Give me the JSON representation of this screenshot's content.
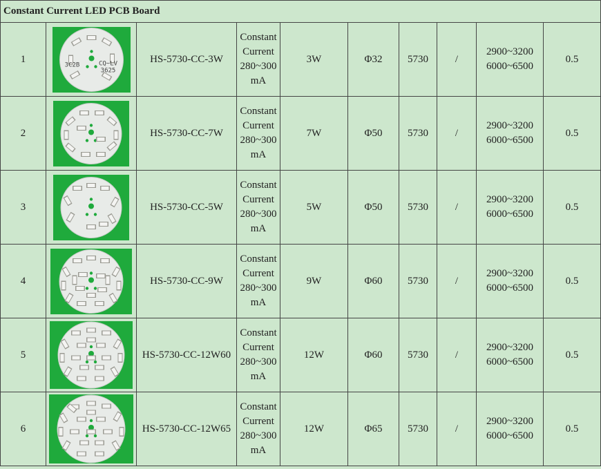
{
  "title": "Constant Current LED PCB Board",
  "colors": {
    "row_bg": "#cde7cd",
    "border": "#444444",
    "thumb_bg": "#1faa3c",
    "board": "#e8ebe8",
    "led": "#f4f4f2"
  },
  "rows": [
    {
      "no": "1",
      "image_icon": "round-led-pcb-3-led-icon",
      "model": "HS-5730-CC-3W",
      "driver": [
        "Constant",
        "Current",
        "280~300",
        "mA"
      ],
      "power": "3W",
      "diameter": "Φ32",
      "led": "5730",
      "extra": "/",
      "cct": [
        "2900~3200",
        "6000~6500"
      ],
      "last": "0.5",
      "board_text": [
        "3C2B",
        "CQ~LV",
        "3625"
      ]
    },
    {
      "no": "2",
      "image_icon": "round-led-pcb-7-led-icon",
      "model": "HS-5730-CC-7W",
      "driver": [
        "Constant",
        "Current",
        "280~300",
        "mA"
      ],
      "power": "7W",
      "diameter": "Φ50",
      "led": "5730",
      "extra": "/",
      "cct": [
        "2900~3200",
        "6000~6500"
      ],
      "last": "0.5",
      "board_text": []
    },
    {
      "no": "3",
      "image_icon": "round-led-pcb-5-led-icon",
      "model": "HS-5730-CC-5W",
      "driver": [
        "Constant",
        "Current",
        "280~300",
        "mA"
      ],
      "power": "5W",
      "diameter": "Φ50",
      "led": "5730",
      "extra": "/",
      "cct": [
        "2900~3200",
        "6000~6500"
      ],
      "last": "0.5",
      "board_text": []
    },
    {
      "no": "4",
      "image_icon": "round-led-pcb-9-led-icon",
      "model": "HS-5730-CC-9W",
      "driver": [
        "Constant",
        "Current",
        "280~300",
        "mA"
      ],
      "power": "9W",
      "diameter": "Φ60",
      "led": "5730",
      "extra": "/",
      "cct": [
        "2900~3200",
        "6000~6500"
      ],
      "last": "0.5",
      "board_text": []
    },
    {
      "no": "5",
      "image_icon": "round-led-pcb-12-led-icon",
      "model": "HS-5730-CC-12W60",
      "driver": [
        "Constant",
        "Current",
        "280~300",
        "mA"
      ],
      "power": "12W",
      "diameter": "Φ60",
      "led": "5730",
      "extra": "/",
      "cct": [
        "2900~3200",
        "6000~6500"
      ],
      "last": "0.5",
      "board_text": []
    },
    {
      "no": "6",
      "image_icon": "round-led-pcb-12-led-icon",
      "model": "HS-5730-CC-12W65",
      "driver": [
        "Constant",
        "Current",
        "280~300",
        "mA"
      ],
      "power": "12W",
      "diameter": "Φ65",
      "led": "5730",
      "extra": "/",
      "cct": [
        "2900~3200",
        "6000~6500"
      ],
      "last": "0.5",
      "board_text": []
    }
  ]
}
